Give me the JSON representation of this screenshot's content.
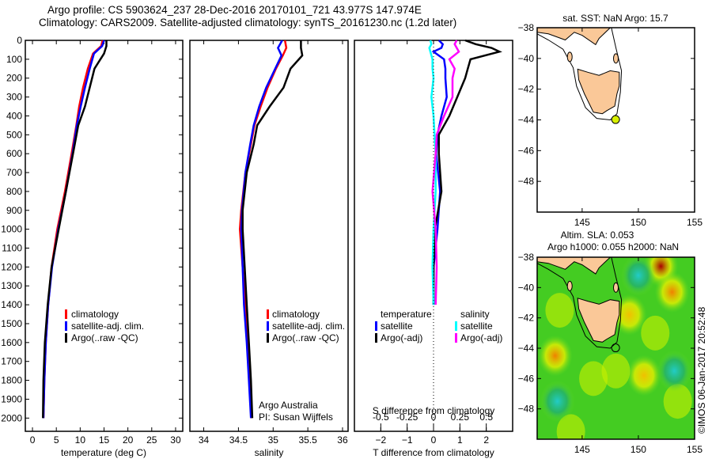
{
  "header": {
    "line1": "Argo profile: CS 5903624_237 28-Dec-2016 20170101_721 43.977S 147.974E",
    "line2": "Climatology: CARS2009. Satellite-adjusted climatology: synTS_20161230.nc (1.2d later)"
  },
  "footer_stamp": "©IMOS 06-Jan-2017 20:52:48",
  "colors": {
    "climatology": "#ff0000",
    "satellite": "#0000ff",
    "argo": "#000000",
    "sal_satellite": "#00ffff",
    "sal_argo": "#ff00ff",
    "land": "#fac898",
    "float_marker": "#d8f000"
  },
  "chart_data": [
    {
      "id": "temperature",
      "type": "line",
      "xlabel": "temperature (deg C)",
      "ylabel": "",
      "xlim": [
        -1.5,
        31.5
      ],
      "ylim": [
        2070,
        0
      ],
      "xticks": [
        0,
        5,
        10,
        15,
        20,
        25,
        30
      ],
      "yticks": [
        0,
        100,
        200,
        300,
        400,
        500,
        600,
        700,
        800,
        900,
        1000,
        1100,
        1200,
        1300,
        1400,
        1500,
        1600,
        1700,
        1800,
        1900,
        2000
      ],
      "legend": [
        "climatology",
        "satellite-adj. clim.",
        "Argo(..raw -QC)"
      ],
      "depth": [
        0,
        30,
        70,
        150,
        250,
        350,
        450,
        600,
        800,
        1000,
        1200,
        1400,
        1600,
        1800,
        2000
      ],
      "series": [
        {
          "name": "climatology",
          "values": [
            14.7,
            14.4,
            12.7,
            11.6,
            10.6,
            9.8,
            9.2,
            8.2,
            6.8,
            5.2,
            4.0,
            3.3,
            2.8,
            2.5,
            2.3
          ]
        },
        {
          "name": "satellite-adj. clim.",
          "values": [
            15.0,
            14.6,
            12.9,
            12.0,
            11.0,
            10.1,
            9.3,
            8.4,
            7.0,
            5.4,
            4.1,
            3.3,
            2.8,
            2.5,
            2.3
          ]
        },
        {
          "name": "Argo(..raw -QC)",
          "values": [
            15.5,
            15.5,
            15.0,
            13.0,
            12.0,
            11.0,
            9.6,
            8.5,
            7.0,
            5.5,
            4.0,
            3.2,
            2.6,
            2.3,
            2.2
          ]
        }
      ]
    },
    {
      "id": "salinity",
      "type": "line",
      "xlabel": "salinity",
      "xlim": [
        33.8,
        36.08
      ],
      "ylim": [
        2070,
        0
      ],
      "xticks": [
        34,
        34.5,
        35,
        35.5,
        36
      ],
      "xticklabels": [
        "34",
        "34.5",
        "35",
        "35.5",
        "36"
      ],
      "legend": [
        "climatology",
        "satellite-adj. clim.",
        "Argo(..raw -QC)"
      ],
      "annotation": [
        "Argo Australia",
        "PI: Susan Wijffels"
      ],
      "depth": [
        0,
        40,
        80,
        150,
        250,
        350,
        450,
        550,
        700,
        900,
        1000,
        1200,
        1400,
        1600,
        1800,
        2000
      ],
      "series": [
        {
          "name": "climatology",
          "values": [
            35.17,
            35.19,
            35.14,
            35.04,
            34.92,
            34.82,
            34.73,
            34.68,
            34.6,
            34.54,
            34.52,
            34.56,
            34.6,
            34.63,
            34.66,
            34.69
          ]
        },
        {
          "name": "satellite-adj. clim.",
          "values": [
            35.13,
            35.07,
            35.12,
            35.03,
            34.9,
            34.8,
            34.72,
            34.67,
            34.6,
            34.55,
            34.54,
            34.56,
            34.58,
            34.62,
            34.65,
            34.68
          ]
        },
        {
          "name": "Argo(..raw -QC)",
          "values": [
            35.4,
            35.4,
            35.42,
            35.25,
            35.15,
            34.95,
            34.77,
            34.72,
            34.62,
            34.56,
            34.56,
            34.59,
            34.62,
            34.65,
            34.68,
            34.7
          ]
        }
      ]
    },
    {
      "id": "difference",
      "type": "line",
      "xlabel": "T difference from climatology",
      "x2label": "S difference from climatology",
      "xlim": [
        -3.0,
        3.0
      ],
      "ylim": [
        2070,
        0
      ],
      "xticks": [
        -2,
        -1,
        0,
        1,
        2
      ],
      "x2ticks": [
        -0.5,
        -0.25,
        0,
        0.25,
        0.5
      ],
      "x2ticklabels": [
        "-0.5",
        "-0.25",
        "0",
        "0.25",
        "0.5"
      ],
      "legend": {
        "temperature_title": "temperature",
        "salinity_title": "salinity",
        "items": [
          "satellite",
          "Argo(-adj)",
          "satellite",
          "Argo(-adj)"
        ]
      },
      "depth": [
        0,
        20,
        40,
        60,
        100,
        150,
        200,
        300,
        400,
        500,
        600,
        800,
        1000,
        1200,
        1400
      ],
      "series": [
        {
          "name": "T satellite",
          "values": [
            0.2,
            0.35,
            0.3,
            0.0,
            0.4,
            0.45,
            0.45,
            0.5,
            0.3,
            0.15,
            0.1,
            0.25,
            0.15,
            0.0,
            0.0
          ]
        },
        {
          "name": "T Argo(-adj)",
          "values": [
            1.2,
            1.6,
            2.2,
            2.5,
            1.4,
            1.3,
            1.2,
            0.9,
            0.6,
            0.2,
            0.2,
            0.3,
            0.05,
            0.0,
            0.0
          ]
        },
        {
          "name": "S satellite",
          "values": [
            -0.03,
            -0.02,
            -0.04,
            -0.03,
            -0.01,
            -0.01,
            0.0,
            -0.02,
            0.0,
            0.01,
            0.02,
            0.02,
            0.0,
            -0.01,
            0.0
          ]
        },
        {
          "name": "S Argo(-adj)",
          "values": [
            0.22,
            0.2,
            0.22,
            0.24,
            0.15,
            0.2,
            0.18,
            0.18,
            0.1,
            0.03,
            0.02,
            -0.01,
            0.02,
            0.03,
            0.02
          ]
        }
      ]
    },
    {
      "id": "sst-map",
      "type": "map",
      "title": "sat. SST: NaN Argo: 15.7",
      "xlim": [
        141,
        155
      ],
      "ylim": [
        -50,
        -38
      ],
      "xticks": [
        145,
        150,
        155
      ],
      "yticks": [
        -38,
        -40,
        -42,
        -44,
        -46,
        -48
      ],
      "float_position": {
        "lon": 147.974,
        "lat": -43.977
      }
    },
    {
      "id": "sla-map",
      "type": "heatmap",
      "title_line1": "Altim. SLA: 0.053",
      "title_line2": "Argo h1000: 0.055 h2000: NaN",
      "xlim": [
        141,
        155
      ],
      "ylim": [
        -50,
        -38
      ],
      "xticks": [
        145,
        150,
        155
      ],
      "yticks": [
        -38,
        -40,
        -42,
        -44,
        -46,
        -48
      ],
      "float_position": {
        "lon": 147.974,
        "lat": -43.977
      },
      "anomalies": [
        {
          "lon": 152.0,
          "lat": -38.6,
          "level": "high"
        },
        {
          "lon": 153.0,
          "lat": -40.3,
          "level": "mid-high"
        },
        {
          "lon": 142.6,
          "lat": -44.5,
          "level": "mid-high"
        },
        {
          "lon": 149.2,
          "lat": -41.8,
          "level": "mid"
        },
        {
          "lon": 150.5,
          "lat": -45.8,
          "level": "mid"
        },
        {
          "lon": 150.0,
          "lat": -39.2,
          "level": "low"
        },
        {
          "lon": 142.8,
          "lat": -47.5,
          "level": "low"
        },
        {
          "lon": 153.2,
          "lat": -45.5,
          "level": "low"
        }
      ]
    }
  ]
}
